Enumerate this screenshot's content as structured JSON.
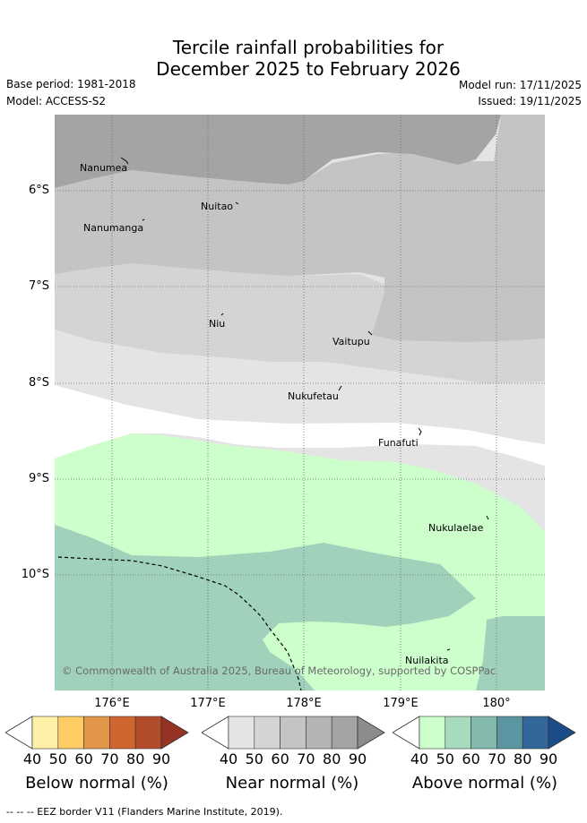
{
  "title": {
    "line1": "Tercile rainfall probabilities for",
    "line2": "December 2025 to February 2026"
  },
  "meta": {
    "base_period": "Base period: 1981-2018",
    "model": "Model: ACCESS-S2",
    "model_run": "Model run: 17/11/2025",
    "issued": "Issued: 19/11/2025"
  },
  "map": {
    "lat_labels": [
      "6°S",
      "7°S",
      "8°S",
      "9°S",
      "10°S"
    ],
    "lon_labels": [
      "176°E",
      "177°E",
      "178°E",
      "179°E",
      "180°"
    ],
    "places": {
      "nanumea": "Nanumea",
      "nuitao": "Nuitao",
      "nanumanga": "Nanumanga",
      "niu": "Niu",
      "vaitupu": "Vaitupu",
      "nukufetau": "Nukufetau",
      "funafuti": "Funafuti",
      "nukulaelae": "Nukulaelae",
      "nuilakita": "Nuilakita"
    },
    "copyright": "© Commonwealth of Australia 2025, Bureau of Meteorology, supported by COSPPac"
  },
  "colorbars": {
    "ticks": [
      "40",
      "50",
      "60",
      "70",
      "80",
      "90"
    ],
    "below": {
      "title": "Below normal (%)",
      "colors": [
        "#fff0a8",
        "#fdcc62",
        "#e3964a",
        "#d06530",
        "#b34c2a",
        "#963424"
      ]
    },
    "near": {
      "title": "Near normal (%)",
      "colors": [
        "#e4e4e4",
        "#d4d4d4",
        "#c4c4c4",
        "#b4b4b4",
        "#a4a4a4",
        "#8c8c8c"
      ]
    },
    "above": {
      "title": "Above normal (%)",
      "colors": [
        "#ccffcc",
        "#a7dbbd",
        "#84b9ae",
        "#5a95a1",
        "#336699",
        "#1a4c87"
      ]
    }
  },
  "footer": "--  --  -- EEZ border V11 (Flanders Marine Institute, 2019)."
}
